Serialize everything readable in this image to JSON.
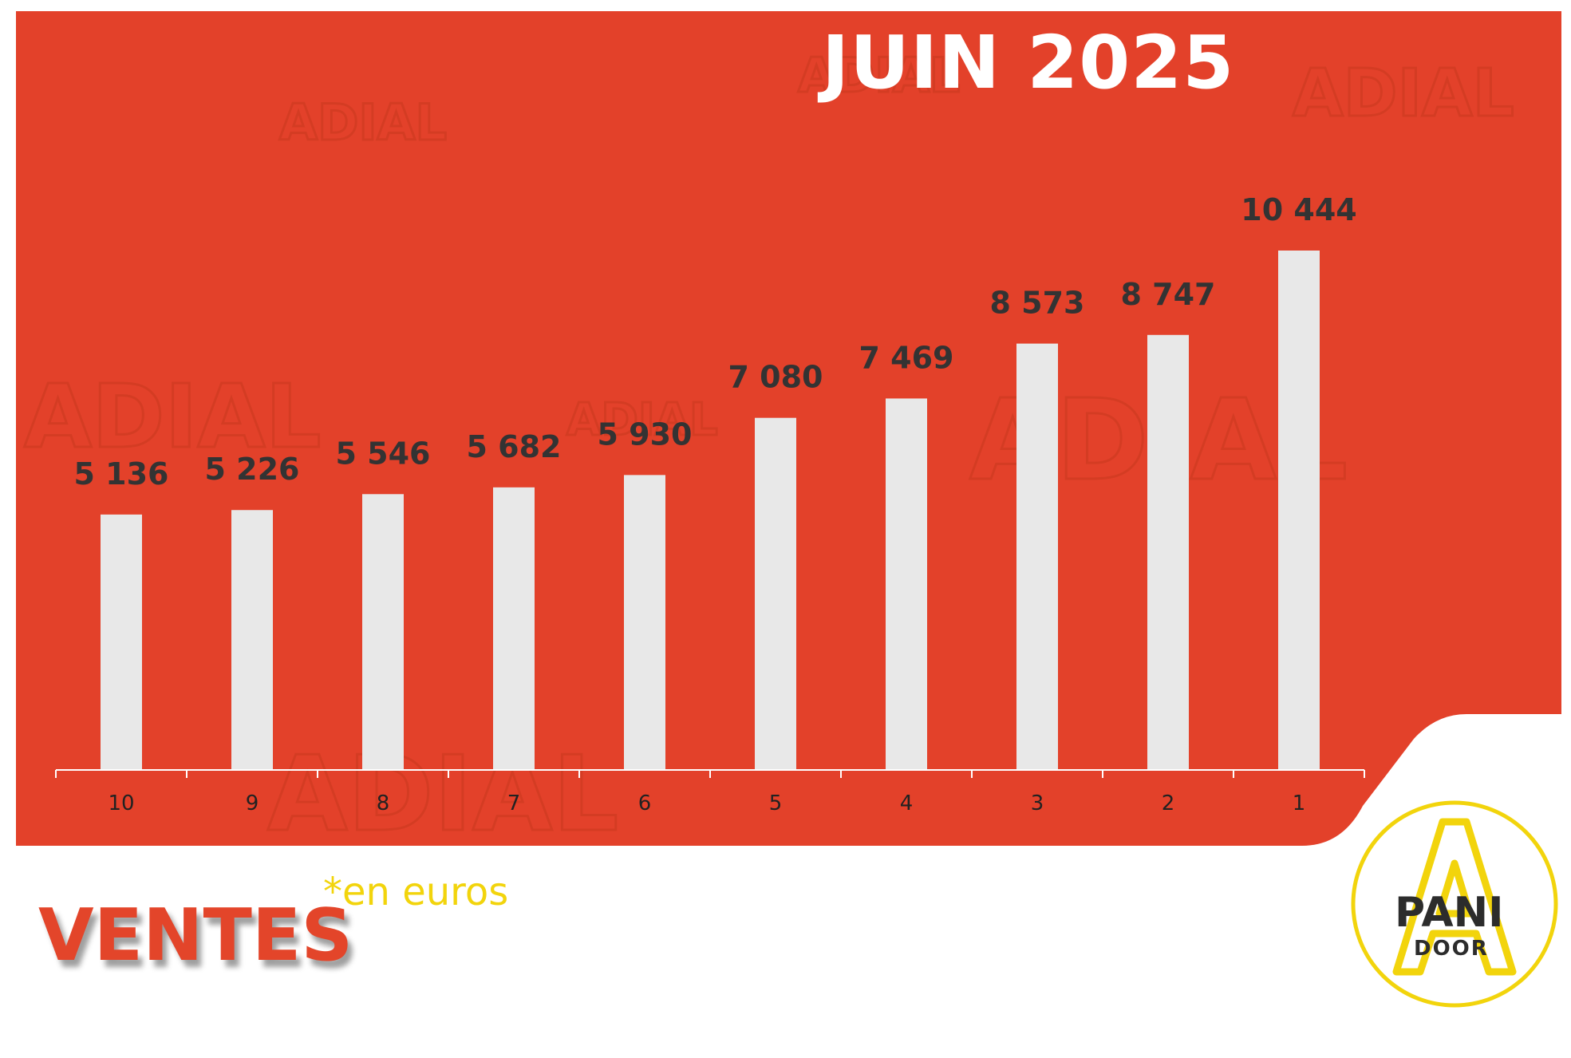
{
  "title": "JUIN 2025",
  "footer": {
    "heading": "VENTES",
    "unit_note": "*en euros"
  },
  "logo": {
    "line1": "PANI",
    "line2": "DOOR",
    "icon": "panidoor-a-icon"
  },
  "watermark": {
    "text": "ADIAL"
  },
  "colors": {
    "panel": "#e3412a",
    "bar": "#e8e8e8",
    "axis": "#ffffff",
    "value_label": "#333333",
    "accent_yellow": "#f2d40c",
    "heading_red": "#e3452a"
  },
  "chart_data": {
    "type": "bar",
    "title": "JUIN 2025",
    "xlabel": "",
    "ylabel": "",
    "categories": [
      "10",
      "9",
      "8",
      "7",
      "6",
      "5",
      "4",
      "3",
      "2",
      "1"
    ],
    "values": [
      5136,
      5226,
      5546,
      5682,
      5930,
      7080,
      7469,
      8573,
      8747,
      10444
    ],
    "value_labels": [
      "5 136",
      "5 226",
      "5 546",
      "5 682",
      "5 930",
      "7 080",
      "7 469",
      "8 573",
      "8 747",
      "10 444"
    ],
    "ylim": [
      0,
      12000
    ],
    "grid": false,
    "legend": "none",
    "data_labels": true
  }
}
